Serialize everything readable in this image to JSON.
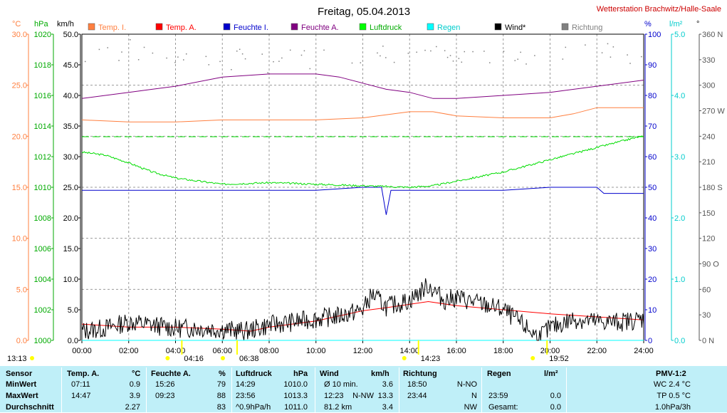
{
  "title": "Freitag, 05.04.2013",
  "station": "Wetterstation Brachwitz/Halle-Saale",
  "colors": {
    "temp_i": "#ff7f3f",
    "temp_a": "#ff0000",
    "feuchte_i": "#0000cc",
    "feuchte_a": "#800080",
    "luftdruck": "#00dd00",
    "regen": "#00ffff",
    "wind": "#000000",
    "richtung": "#808080",
    "axis_c": "#ff7f3f",
    "axis_hpa": "#00aa00",
    "axis_pct": "#0000cc",
    "axis_lm2": "#00cccc",
    "station": "#cc0000",
    "marker": "#ffff00",
    "table_bg": "#bfeff8"
  },
  "legend": [
    {
      "label": "Temp. I.",
      "color": "#ff7f3f",
      "text_color": "#ff7f3f"
    },
    {
      "label": "Temp. A.",
      "color": "#ff0000",
      "text_color": "#ff0000"
    },
    {
      "label": "Feuchte I.",
      "color": "#0000cc",
      "text_color": "#0000cc"
    },
    {
      "label": "Feuchte A.",
      "color": "#800080",
      "text_color": "#800080"
    },
    {
      "label": "Luftdruck",
      "color": "#00ff00",
      "text_color": "#00aa00"
    },
    {
      "label": "Regen",
      "color": "#00ffff",
      "text_color": "#00cccc"
    },
    {
      "label": "Wind*",
      "color": "#000000",
      "text_color": "#000000"
    },
    {
      "label": "Richtung",
      "color": "#808080",
      "text_color": "#808080"
    }
  ],
  "axes": {
    "units": {
      "c": "°C",
      "hpa": "hPa",
      "kmh": "km/h",
      "pct": "%",
      "lm2": "l/m²",
      "deg": "°"
    },
    "c_ticks": [
      "30.0",
      "25.0",
      "20.0",
      "15.0",
      "10.0",
      "5.0",
      "0.0"
    ],
    "hpa_ticks": [
      "1020",
      "1018",
      "1016",
      "1014",
      "1012",
      "1010",
      "1008",
      "1006",
      "1004",
      "1002",
      "1000"
    ],
    "kmh_ticks": [
      "50.0",
      "45.0",
      "40.0",
      "35.0",
      "30.0",
      "25.0",
      "20.0",
      "15.0",
      "10.0",
      "5.0",
      "0.0"
    ],
    "pct_ticks": [
      "100",
      "90",
      "80",
      "70",
      "60",
      "50",
      "40",
      "30",
      "20",
      "10",
      "0"
    ],
    "lm2_ticks": [
      "5.0",
      "4.0",
      "3.0",
      "2.0",
      "1.0",
      "0.0"
    ],
    "deg_ticks": [
      "360 N",
      "330",
      "300",
      "270 W",
      "240",
      "210",
      "180 S",
      "150",
      "120",
      "90 O",
      "60",
      "30",
      "0 N"
    ],
    "x_ticks": [
      "00:00",
      "02:00",
      "04:00",
      "06:00",
      "08:00",
      "10:00",
      "12:00",
      "14:00",
      "16:00",
      "18:00",
      "20:00",
      "22:00",
      "24:00"
    ]
  },
  "sun_markers": [
    {
      "label": "13:13",
      "hour": 0
    },
    {
      "label": "04:16",
      "hour": 4.27
    },
    {
      "label": "06:38",
      "hour": 6.63
    },
    {
      "label": "14:23",
      "hour": 14.38
    },
    {
      "label": "19:52",
      "hour": 19.87
    }
  ],
  "chart_data": {
    "type": "line",
    "title": "Freitag, 05.04.2013",
    "x_range": [
      "00:00",
      "24:00"
    ],
    "grid": true,
    "series": [
      {
        "name": "Temp. I.",
        "axis": "°C",
        "x": [
          0,
          2,
          4,
          6,
          8,
          10,
          12,
          14,
          15,
          16,
          18,
          20,
          21,
          22,
          24
        ],
        "y": [
          21.6,
          21.4,
          21.4,
          21.6,
          21.6,
          21.6,
          21.8,
          22.4,
          22.4,
          22.0,
          21.8,
          21.8,
          22.2,
          22.8,
          22.8
        ]
      },
      {
        "name": "Temp. A.",
        "axis": "°C",
        "x": [
          0,
          2,
          4,
          6,
          7.2,
          8,
          10,
          12,
          13,
          14.8,
          16,
          18,
          20,
          22,
          24
        ],
        "y": [
          1.6,
          1.3,
          1.3,
          1.1,
          0.9,
          1.3,
          1.9,
          2.9,
          3.2,
          3.8,
          3.4,
          3.0,
          2.6,
          2.3,
          2.0
        ]
      },
      {
        "name": "Feuchte I.",
        "axis": "%",
        "x": [
          0,
          4,
          6,
          8,
          10,
          12,
          12.8,
          13,
          13.2,
          14,
          16,
          18,
          20,
          22,
          22.3,
          24
        ],
        "y": [
          49,
          49,
          49,
          49,
          49,
          50,
          50,
          41,
          49,
          49,
          49,
          49,
          50,
          50,
          48,
          48
        ]
      },
      {
        "name": "Feuchte A.",
        "axis": "%",
        "x": [
          0,
          1,
          2,
          3,
          4,
          6,
          8,
          10,
          11,
          12,
          13,
          14,
          15,
          16,
          18,
          20,
          22,
          24
        ],
        "y": [
          79,
          80,
          81,
          82,
          83,
          86,
          87,
          87,
          86,
          84,
          82,
          81,
          79,
          79,
          80,
          81,
          83,
          85
        ]
      },
      {
        "name": "Luftdruck",
        "axis": "hPa",
        "x": [
          0,
          1,
          2,
          3,
          4,
          5,
          6,
          8,
          10,
          12,
          14,
          15,
          16,
          18,
          20,
          22,
          23.8,
          24
        ],
        "y": [
          1012.3,
          1012.1,
          1011.6,
          1011.0,
          1010.6,
          1010.4,
          1010.2,
          1010.3,
          1010.2,
          1010.1,
          1010.0,
          1010.1,
          1010.4,
          1011.0,
          1011.8,
          1012.6,
          1013.3,
          1013.3
        ]
      },
      {
        "name": "Regen",
        "axis": "l/m²",
        "x": [
          0,
          24
        ],
        "y": [
          0.0,
          0.0
        ]
      },
      {
        "name": "Wind*",
        "axis": "km/h",
        "x": [
          0,
          1,
          2,
          3,
          4,
          5,
          6,
          7,
          8,
          9,
          10,
          11,
          12,
          12.4,
          13,
          14,
          14.8,
          15.5,
          16,
          17,
          18,
          19,
          19.5,
          20,
          21,
          22,
          23,
          24
        ],
        "y": [
          1.5,
          2.0,
          3.0,
          2.5,
          2.0,
          2.0,
          1.8,
          1.5,
          2.5,
          3.0,
          3.5,
          4.0,
          5.0,
          7.5,
          5.5,
          6.5,
          9.0,
          6.5,
          7.0,
          6.0,
          5.0,
          2.0,
          0.5,
          2.0,
          3.5,
          3.0,
          3.0,
          3.5
        ]
      },
      {
        "name": "Richtung",
        "axis": "°",
        "x": [
          0,
          3,
          5,
          8,
          10,
          12,
          14,
          16,
          18,
          20,
          22,
          24
        ],
        "y": [
          340,
          340,
          330,
          330,
          330,
          340,
          340,
          330,
          340,
          330,
          340,
          330
        ]
      }
    ]
  },
  "table": {
    "headers": {
      "sensor": "Sensor",
      "temp": "Temp. A.",
      "temp_unit": "°C",
      "feuchte": "Feuchte A.",
      "feuchte_unit": "%",
      "luftdruck": "Luftdruck",
      "luftdruck_unit": "hPa",
      "wind": "Wind",
      "wind_unit": "km/h",
      "richtung": "Richtung",
      "regen": "Regen",
      "regen_unit": "l/m²",
      "pmv": "PMV-1:2"
    },
    "rows": [
      {
        "label": "MinWert",
        "temp_time": "07:11",
        "temp_val": "0.9",
        "feuchte_time": "15:26",
        "feuchte_val": "79",
        "luft_time": "14:29",
        "luft_val": "1010.0",
        "wind_time": "Ø 10 min.",
        "wind_dir": "",
        "wind_val": "3.6",
        "richtung_time": "18:50",
        "richtung_val": "N-NO",
        "regen_time": "",
        "regen_val": "",
        "pmv": "WC 2.4 °C"
      },
      {
        "label": "MaxWert",
        "temp_time": "14:47",
        "temp_val": "3.9",
        "feuchte_time": "09:23",
        "feuchte_val": "88",
        "luft_time": "23:56",
        "luft_val": "1013.3",
        "wind_time": "12:23",
        "wind_dir": "N-NW",
        "wind_val": "13.3",
        "richtung_time": "23:44",
        "richtung_val": "N",
        "regen_time": "23:59",
        "regen_val": "0.0",
        "pmv": "TP 0.5 °C"
      },
      {
        "label": "Durchschnitt",
        "temp_time": "",
        "temp_val": "2.27",
        "feuchte_time": "",
        "feuchte_val": "83",
        "luft_time": "^0.9hPa/h",
        "luft_val": "1011.0",
        "wind_time": "81.2 km",
        "wind_dir": "",
        "wind_val": "3.4",
        "richtung_time": "",
        "richtung_val": "NW",
        "regen_time": "Gesamt:",
        "regen_val": "0.0",
        "pmv": "1.0hPa/3h"
      }
    ]
  }
}
